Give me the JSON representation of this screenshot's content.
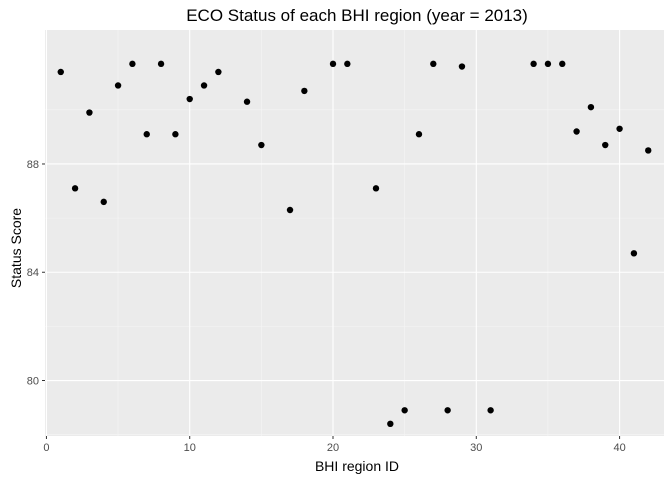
{
  "chart_data": {
    "type": "scatter",
    "title": "ECO Status of each BHI region (year = 2013)",
    "xlabel": "BHI region ID",
    "ylabel": "Status Score",
    "xlim": [
      -0.1,
      43.1
    ],
    "ylim": [
      77.95,
      92.95
    ],
    "x_ticks": [
      0,
      10,
      20,
      30,
      40
    ],
    "y_ticks": [
      80,
      84,
      88
    ],
    "grid": true,
    "legend": "none",
    "colors": {
      "panel": "#ebebeb",
      "grid_major": "#ffffff",
      "point": "#000000",
      "tick_text": "#4d4d4d"
    },
    "points": [
      {
        "x": 1,
        "y": 91.4
      },
      {
        "x": 2,
        "y": 87.1
      },
      {
        "x": 3,
        "y": 89.9
      },
      {
        "x": 4,
        "y": 86.6
      },
      {
        "x": 5,
        "y": 90.9
      },
      {
        "x": 6,
        "y": 91.7
      },
      {
        "x": 7,
        "y": 89.1
      },
      {
        "x": 8,
        "y": 91.7
      },
      {
        "x": 9,
        "y": 89.1
      },
      {
        "x": 10,
        "y": 90.4
      },
      {
        "x": 11,
        "y": 90.9
      },
      {
        "x": 12,
        "y": 91.4
      },
      {
        "x": 14,
        "y": 90.3
      },
      {
        "x": 15,
        "y": 88.7
      },
      {
        "x": 17,
        "y": 86.3
      },
      {
        "x": 18,
        "y": 90.7
      },
      {
        "x": 20,
        "y": 91.7
      },
      {
        "x": 21,
        "y": 91.7
      },
      {
        "x": 23,
        "y": 87.1
      },
      {
        "x": 24,
        "y": 78.4
      },
      {
        "x": 25,
        "y": 78.9
      },
      {
        "x": 26,
        "y": 89.1
      },
      {
        "x": 27,
        "y": 91.7
      },
      {
        "x": 28,
        "y": 78.9
      },
      {
        "x": 29,
        "y": 91.6
      },
      {
        "x": 31,
        "y": 78.9
      },
      {
        "x": 34,
        "y": 91.7
      },
      {
        "x": 35,
        "y": 91.7
      },
      {
        "x": 36,
        "y": 91.7
      },
      {
        "x": 37,
        "y": 89.2
      },
      {
        "x": 38,
        "y": 90.1
      },
      {
        "x": 39,
        "y": 88.7
      },
      {
        "x": 40,
        "y": 89.3
      },
      {
        "x": 41,
        "y": 84.7
      },
      {
        "x": 42,
        "y": 88.5
      }
    ]
  }
}
